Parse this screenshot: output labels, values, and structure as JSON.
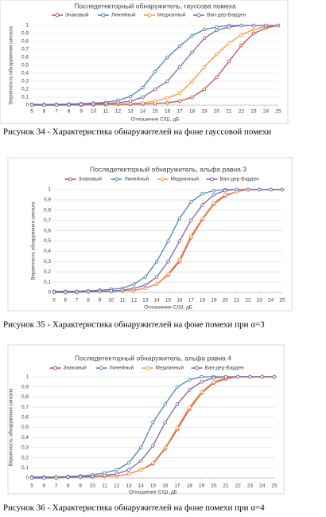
{
  "chart_data": [
    {
      "type": "line",
      "title": "Последетекторный  обнаружитель, гауссова помеха",
      "caption": "Рисунок 34 - Характеристика обнаружителей на фоне гауссовой помехи",
      "x_label": "Отношение С/Ш, дБ",
      "y_label": "Вероятность обнаружения сигнала",
      "x": [
        5,
        6,
        7,
        8,
        9,
        10,
        11,
        12,
        13,
        14,
        15,
        16,
        17,
        18,
        19,
        20,
        21,
        22,
        23,
        24,
        25
      ],
      "xlim": [
        5,
        25
      ],
      "xticks": [
        5,
        6,
        7,
        8,
        9,
        10,
        11,
        12,
        13,
        14,
        15,
        16,
        17,
        18,
        19,
        20,
        21,
        22,
        23,
        24,
        25
      ],
      "ylim": [
        0,
        1
      ],
      "yticks": [
        0,
        {
          "value": 0.1,
          "label": "0,1"
        },
        {
          "value": 0.2,
          "label": "0,2"
        },
        {
          "value": 0.3,
          "label": "0,3"
        },
        {
          "value": 0.4,
          "label": "0,4"
        },
        {
          "value": 0.5,
          "label": "0,5"
        },
        {
          "value": 0.6,
          "label": "0,6"
        },
        {
          "value": 0.7,
          "label": "0,7"
        },
        {
          "value": 0.8,
          "label": "0,8"
        },
        {
          "value": 0.9,
          "label": "0,9"
        },
        1
      ],
      "grid": true,
      "series": [
        {
          "name": "Знаковый",
          "color": "#c0504d",
          "values": [
            0,
            0,
            0,
            0,
            0,
            0.005,
            0.005,
            0.01,
            0.01,
            0.015,
            0.02,
            0.03,
            0.05,
            0.1,
            0.2,
            0.35,
            0.55,
            0.75,
            0.9,
            0.97,
            1
          ]
        },
        {
          "name": "Линейный",
          "color": "#4f81bd",
          "values": [
            0.01,
            0.01,
            0.01,
            0.015,
            0.02,
            0.025,
            0.035,
            0.06,
            0.11,
            0.22,
            0.42,
            0.6,
            0.74,
            0.87,
            0.95,
            0.98,
            1,
            1,
            1,
            1,
            1
          ]
        },
        {
          "name": "Медианный",
          "color": "#f79646",
          "values": [
            0,
            0,
            0,
            0,
            0.005,
            0.01,
            0.01,
            0.015,
            0.02,
            0.03,
            0.05,
            0.09,
            0.15,
            0.3,
            0.48,
            0.64,
            0.78,
            0.88,
            0.95,
            0.99,
            1
          ]
        },
        {
          "name": "Ван-дер-Варден",
          "color": "#8064a2",
          "values": [
            0,
            0,
            0,
            0.005,
            0.01,
            0.015,
            0.02,
            0.03,
            0.05,
            0.1,
            0.2,
            0.3,
            0.48,
            0.66,
            0.84,
            0.94,
            0.98,
            1,
            1,
            1,
            1
          ]
        }
      ]
    },
    {
      "type": "line",
      "title": "Последетекторный  обнаружитель, альфа равна 3",
      "caption": "Рисунок 35 - Характеристика обнаружителей на фоне помехи при α=3",
      "x_label": "Отношение С/Ш, дБ",
      "y_label": "Вероятность обнаружения сигнала",
      "x": [
        5,
        6,
        7,
        8,
        9,
        10,
        11,
        12,
        13,
        14,
        15,
        16,
        17,
        18,
        19,
        20,
        21,
        22,
        23,
        24,
        25
      ],
      "xlim": [
        5,
        25
      ],
      "xticks": [
        5,
        6,
        7,
        8,
        9,
        10,
        11,
        12,
        13,
        14,
        15,
        16,
        17,
        18,
        19,
        20,
        21,
        22,
        23,
        24,
        25
      ],
      "ylim": [
        0,
        1
      ],
      "yticks": [
        0,
        {
          "value": 0.1,
          "label": "0,1"
        },
        {
          "value": 0.2,
          "label": "0,2"
        },
        {
          "value": 0.3,
          "label": "0,3"
        },
        {
          "value": 0.4,
          "label": "0,4"
        },
        {
          "value": 0.5,
          "label": "0,5"
        },
        {
          "value": 0.6,
          "label": "0,6"
        },
        {
          "value": 0.7,
          "label": "0,7"
        },
        {
          "value": 0.8,
          "label": "0,8"
        },
        {
          "value": 0.9,
          "label": "0,9"
        },
        1
      ],
      "grid": true,
      "series": [
        {
          "name": "Знаковый",
          "color": "#c0504d",
          "values": [
            0,
            0,
            0,
            0.005,
            0.01,
            0.01,
            0.015,
            0.02,
            0.04,
            0.08,
            0.17,
            0.3,
            0.53,
            0.71,
            0.86,
            0.94,
            0.98,
            1,
            1,
            1,
            1
          ]
        },
        {
          "name": "Линейный",
          "color": "#4f81bd",
          "values": [
            0.01,
            0.01,
            0.01,
            0.015,
            0.02,
            0.03,
            0.04,
            0.08,
            0.15,
            0.3,
            0.5,
            0.72,
            0.88,
            0.96,
            0.99,
            1,
            1,
            1,
            1,
            1,
            1
          ]
        },
        {
          "name": "Медианный",
          "color": "#f79646",
          "values": [
            0,
            0,
            0,
            0.005,
            0.01,
            0.01,
            0.015,
            0.02,
            0.04,
            0.08,
            0.18,
            0.32,
            0.55,
            0.72,
            0.87,
            0.95,
            0.98,
            1,
            1,
            1,
            1
          ]
        },
        {
          "name": "Ван-дер-Варден",
          "color": "#8064a2",
          "values": [
            0,
            0,
            0.005,
            0.01,
            0.01,
            0.015,
            0.02,
            0.04,
            0.07,
            0.15,
            0.3,
            0.5,
            0.7,
            0.85,
            0.95,
            0.99,
            1,
            1,
            1,
            1,
            1
          ]
        }
      ]
    },
    {
      "type": "line",
      "title": "Последетекторный  обнаружитель, альфа равна 4",
      "caption": "Рисунок 36 - Характеристика обнаружителей на фоне помехи при α=4",
      "x_label": "Отношение С/Ш, дБ",
      "y_label": "Вероятность обнаружения сигнала",
      "x": [
        5,
        6,
        7,
        8,
        9,
        10,
        11,
        12,
        13,
        14,
        15,
        16,
        17,
        18,
        19,
        20,
        21,
        22,
        23,
        24,
        25
      ],
      "xlim": [
        5,
        25
      ],
      "xticks": [
        5,
        6,
        7,
        8,
        9,
        10,
        11,
        12,
        13,
        14,
        15,
        16,
        17,
        18,
        19,
        20,
        21,
        22,
        23,
        24,
        25
      ],
      "ylim": [
        0,
        1
      ],
      "yticks": [
        0,
        {
          "value": 0.1,
          "label": "0,1"
        },
        {
          "value": 0.2,
          "label": "0,2"
        },
        {
          "value": 0.3,
          "label": "0,3"
        },
        {
          "value": 0.4,
          "label": "0,4"
        },
        {
          "value": 0.5,
          "label": "0,5"
        },
        {
          "value": 0.6,
          "label": "0,6"
        },
        {
          "value": 0.7,
          "label": "0,7"
        },
        {
          "value": 0.8,
          "label": "0,8"
        },
        {
          "value": 0.9,
          "label": "0,9"
        },
        1
      ],
      "grid": true,
      "series": [
        {
          "name": "Знаковый",
          "color": "#c0504d",
          "values": [
            0,
            0,
            0,
            0.005,
            0.01,
            0.01,
            0.015,
            0.02,
            0.04,
            0.08,
            0.14,
            0.29,
            0.48,
            0.68,
            0.84,
            0.94,
            0.98,
            1,
            1,
            1,
            1
          ]
        },
        {
          "name": "Линейный",
          "color": "#4f81bd",
          "values": [
            0.01,
            0.01,
            0.01,
            0.015,
            0.02,
            0.03,
            0.05,
            0.08,
            0.15,
            0.3,
            0.55,
            0.73,
            0.9,
            0.97,
            1,
            1,
            1,
            1,
            1,
            1,
            1
          ]
        },
        {
          "name": "Медианный",
          "color": "#f79646",
          "values": [
            0,
            0,
            0,
            0.005,
            0.01,
            0.01,
            0.015,
            0.02,
            0.04,
            0.08,
            0.15,
            0.3,
            0.5,
            0.7,
            0.85,
            0.95,
            0.99,
            1,
            1,
            1,
            1
          ]
        },
        {
          "name": "Ван-дер-Варден",
          "color": "#8064a2",
          "values": [
            0,
            0,
            0.005,
            0.01,
            0.01,
            0.015,
            0.025,
            0.04,
            0.08,
            0.17,
            0.32,
            0.55,
            0.73,
            0.87,
            0.95,
            0.99,
            1,
            1,
            1,
            1,
            1
          ]
        }
      ]
    }
  ]
}
